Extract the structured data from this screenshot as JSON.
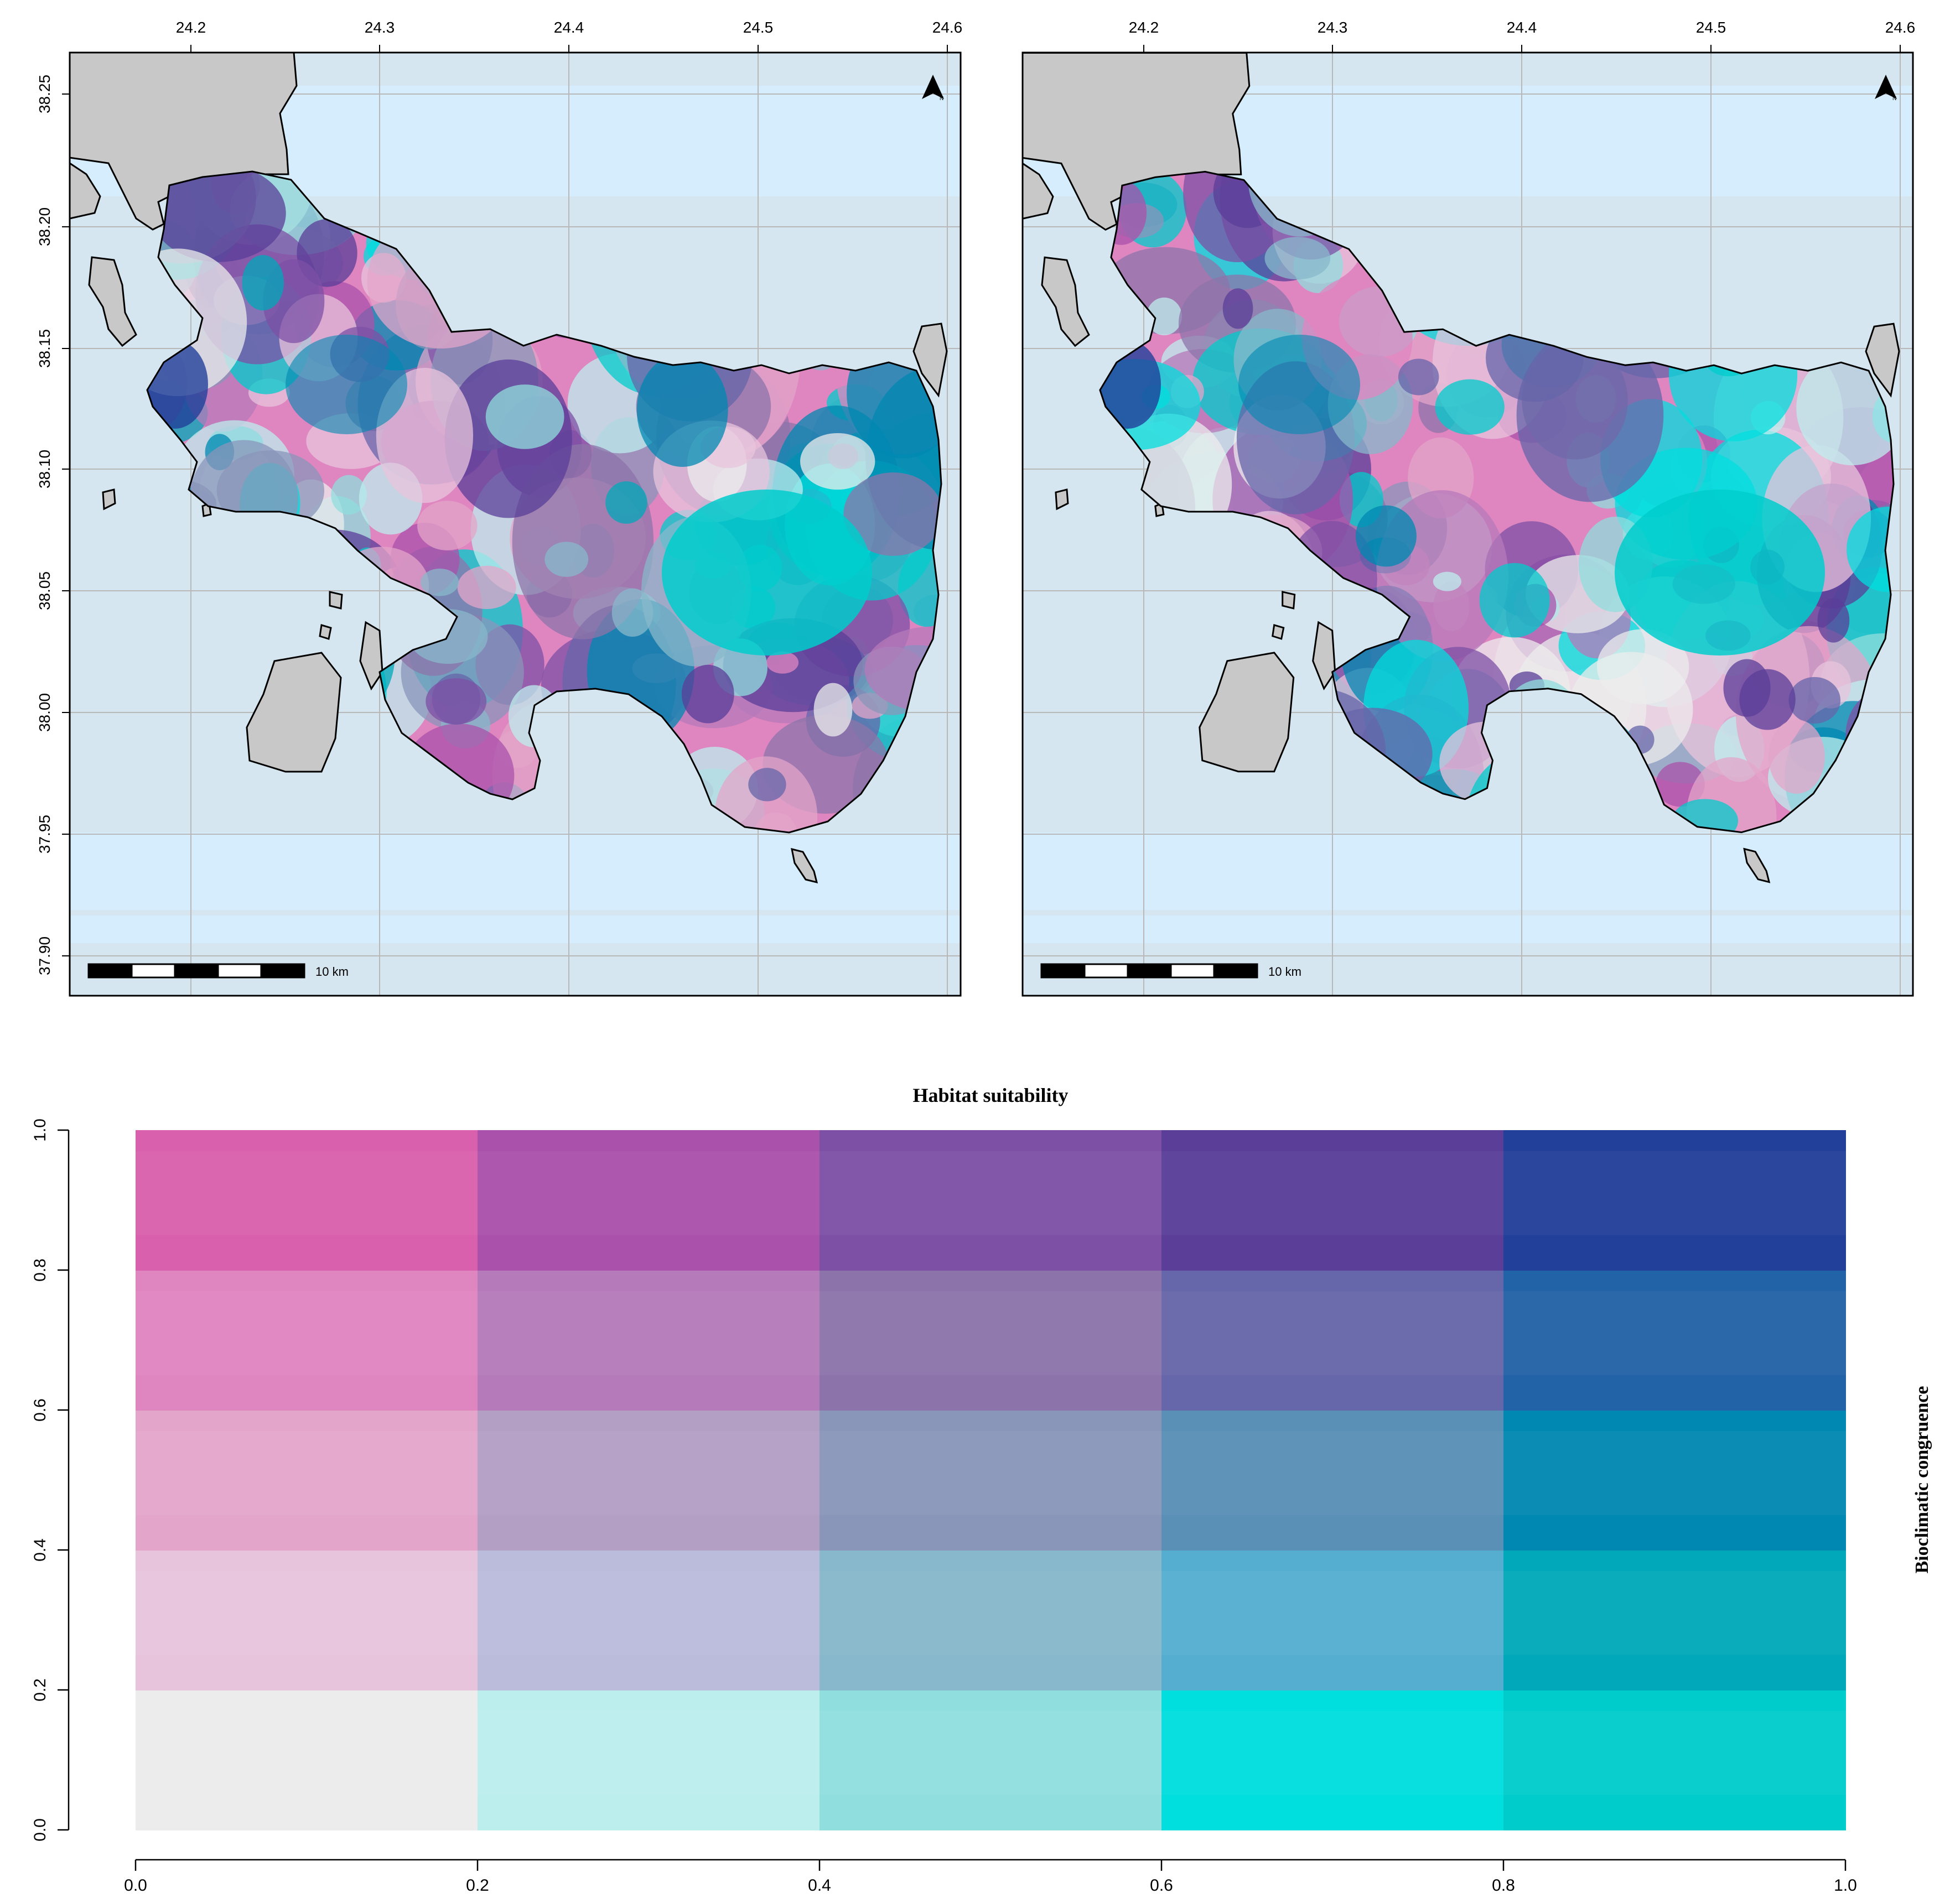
{
  "maps": [
    {
      "name": "left-map",
      "x_ticks": [
        "24.2",
        "24.3",
        "24.4",
        "24.5",
        "24.6"
      ],
      "y_ticks": [
        "38.25",
        "38.20",
        "38.15",
        "38.10",
        "38.05",
        "38.00",
        "37.95",
        "37.90"
      ],
      "scale_label": "10 km",
      "north_label": "N"
    },
    {
      "name": "right-map",
      "x_ticks": [
        "24.2",
        "24.3",
        "24.4",
        "24.5",
        "24.6"
      ],
      "y_ticks": [],
      "scale_label": "10 km",
      "north_label": "N"
    }
  ],
  "legend": {
    "title": "Habitat suitability",
    "ylabel": "Bioclimatic congruence",
    "x_ticks": [
      "0.0",
      "0.2",
      "0.4",
      "0.6",
      "0.8",
      "1.0"
    ],
    "y_ticks": [
      "0.0",
      "0.2",
      "0.4",
      "0.6",
      "0.8",
      "1.0"
    ],
    "grid_colors": [
      [
        "#ececec",
        "#bdeeee",
        "#90dede",
        "#00dede",
        "#00cccc"
      ],
      [
        "#e8c4dc",
        "#bbbcdc",
        "#88b8cb",
        "#55aed0",
        "#00a8b9"
      ],
      [
        "#e3a6ca",
        "#b49fc4",
        "#8a96b9",
        "#5a8fb6",
        "#0088b2"
      ],
      [
        "#df85c0",
        "#b57ab9",
        "#8c74aa",
        "#6666aa",
        "#2262a6"
      ],
      [
        "#d960ad",
        "#aa52ab",
        "#7d50a5",
        "#5a3e98",
        "#22409a"
      ]
    ]
  },
  "colors": {
    "sea": "#d6e6f0",
    "sea_light": "#d5edfc",
    "land": "#c8c8c8",
    "graticule": "#b8b8b8"
  }
}
